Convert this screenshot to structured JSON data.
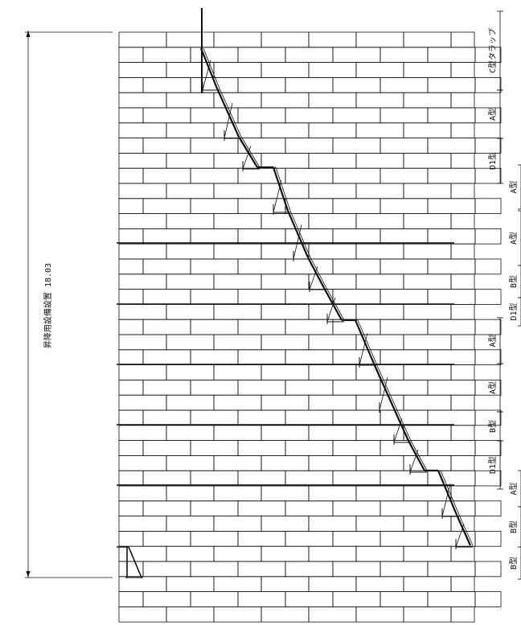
{
  "dimension": {
    "label": "昇降用設備設置 18.03"
  },
  "segments": [
    {
      "label": "C型タラップ"
    },
    {
      "label": "A型"
    },
    {
      "label": "D1型"
    },
    {
      "label": "A型"
    },
    {
      "label": "A型"
    },
    {
      "label": "B型"
    },
    {
      "label": "D1型"
    },
    {
      "label": "A型"
    },
    {
      "label": "A型"
    },
    {
      "label": "B型"
    },
    {
      "label": "D1型"
    },
    {
      "label": "A型"
    },
    {
      "label": "B型"
    },
    {
      "label": "B型"
    }
  ],
  "colors": {
    "line": "#111111",
    "background": "#ffffff"
  }
}
